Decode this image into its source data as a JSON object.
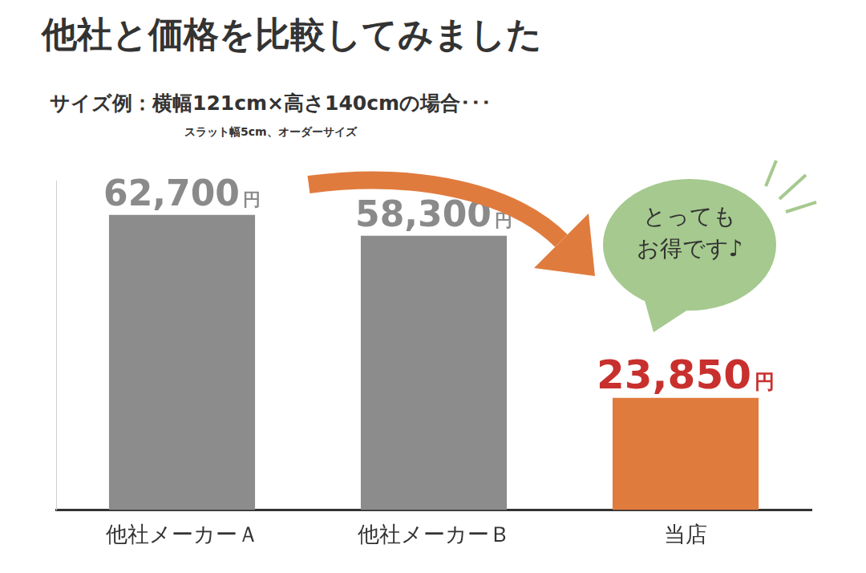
{
  "chart_data": {
    "type": "bar",
    "title": "他社と価格を比較してみました",
    "subtitle": "サイズ例：横幅121cm×高さ140cmの場合･･･",
    "annotations": [
      "スラット幅5cm、オーダーサイズ",
      "とっても\nお得です♪"
    ],
    "categories": [
      "他社メーカーＡ",
      "他社メーカーＢ",
      "当店"
    ],
    "values": [
      62700,
      58300,
      23850
    ],
    "value_labels": [
      "62,700円",
      "58,300円",
      "23,850円"
    ],
    "colors": [
      "#8c8c8c",
      "#8c8c8c",
      "#e07b3e"
    ],
    "ylim": [
      0,
      70000
    ],
    "grid": false,
    "data_labels": true,
    "tick_labels": "x"
  }
}
